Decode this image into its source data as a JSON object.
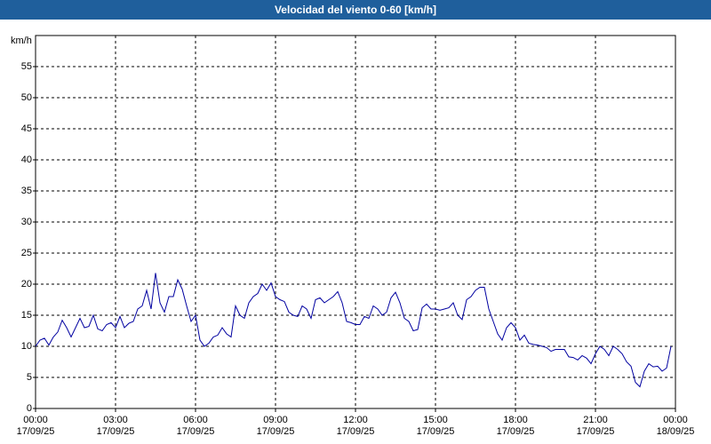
{
  "chart_data": {
    "type": "line",
    "title": "Velocidad del viento 0-60 [km/h]",
    "y_label": "km/h",
    "color": "#0000a0",
    "grid": true,
    "xlim": [
      0,
      1440
    ],
    "ylim": [
      0,
      60
    ],
    "yticks": [
      0,
      5,
      10,
      15,
      20,
      25,
      30,
      35,
      40,
      45,
      50,
      55
    ],
    "xticks": [
      {
        "value": 0,
        "label": "00:00\n17/09/25"
      },
      {
        "value": 180,
        "label": "03:00\n17/09/25"
      },
      {
        "value": 360,
        "label": "06:00\n17/09/25"
      },
      {
        "value": 540,
        "label": "09:00\n17/09/25"
      },
      {
        "value": 720,
        "label": "12:00\n17/09/25"
      },
      {
        "value": 900,
        "label": "15:00\n17/09/25"
      },
      {
        "value": 1080,
        "label": "18:00\n17/09/25"
      },
      {
        "value": 1260,
        "label": "21:00\n17/09/25"
      },
      {
        "value": 1440,
        "label": "00:00\n18/09/25"
      }
    ],
    "x": [
      0,
      10,
      20,
      30,
      40,
      50,
      60,
      70,
      80,
      90,
      100,
      110,
      120,
      130,
      140,
      150,
      160,
      170,
      180,
      190,
      200,
      210,
      220,
      230,
      240,
      250,
      260,
      270,
      280,
      290,
      300,
      310,
      320,
      330,
      340,
      350,
      360,
      370,
      380,
      390,
      400,
      410,
      420,
      430,
      440,
      450,
      460,
      470,
      480,
      490,
      500,
      510,
      520,
      530,
      540,
      550,
      560,
      570,
      580,
      590,
      600,
      610,
      620,
      630,
      640,
      650,
      660,
      670,
      680,
      690,
      700,
      710,
      720,
      730,
      740,
      750,
      760,
      770,
      780,
      790,
      800,
      810,
      820,
      830,
      840,
      850,
      860,
      870,
      880,
      890,
      900,
      910,
      920,
      930,
      940,
      950,
      960,
      970,
      980,
      990,
      1000,
      1010,
      1020,
      1030,
      1040,
      1050,
      1060,
      1070,
      1080,
      1090,
      1100,
      1110,
      1120,
      1130,
      1140,
      1150,
      1160,
      1170,
      1180,
      1190,
      1200,
      1210,
      1220,
      1230,
      1240,
      1250,
      1260,
      1270,
      1280,
      1290,
      1300,
      1310,
      1320,
      1330,
      1340,
      1350,
      1360,
      1370,
      1380,
      1390,
      1400,
      1410,
      1420,
      1430
    ],
    "values": [
      10,
      11,
      11.3,
      10.2,
      11.5,
      12.3,
      14.2,
      13,
      11.5,
      13,
      14.5,
      13,
      13.2,
      15,
      12.8,
      12.5,
      13.5,
      13.8,
      13,
      14.8,
      13,
      13.7,
      14,
      16,
      16.5,
      19,
      16,
      21.8,
      17,
      15.5,
      18,
      18,
      20.7,
      19.2,
      16.5,
      14,
      15,
      11,
      10,
      10.5,
      11.5,
      11.8,
      13,
      12,
      11.5,
      16.5,
      15,
      14.5,
      17,
      18,
      18.5,
      20,
      19,
      20.2,
      18,
      17.5,
      17.2,
      15.5,
      15,
      14.8,
      16.5,
      16,
      14.5,
      17.5,
      17.8,
      17,
      17.5,
      18,
      18.8,
      17,
      14,
      13.8,
      13.5,
      13.5,
      14.8,
      14.5,
      16.5,
      16,
      15,
      15.5,
      17.8,
      18.7,
      17,
      14.5,
      14,
      12.5,
      12.7,
      16.2,
      16.8,
      16,
      16,
      15.8,
      16,
      16.2,
      17,
      15,
      14.3,
      17.5,
      18,
      19,
      19.5,
      19.5,
      16,
      14,
      12,
      11,
      13,
      13.8,
      13,
      11,
      11.8,
      10.5,
      10.3,
      10.2,
      10,
      9.8,
      9.2,
      9.5,
      9.5,
      9.5,
      8.3,
      8.2,
      7.8,
      8.5,
      8.1,
      7.2,
      8.8,
      10,
      9.5,
      8.5,
      10,
      9.5,
      8.8,
      7.5,
      6.8,
      4.2,
      3.5,
      6,
      7.2,
      6.7,
      6.8,
      6,
      6.5,
      10
    ]
  }
}
